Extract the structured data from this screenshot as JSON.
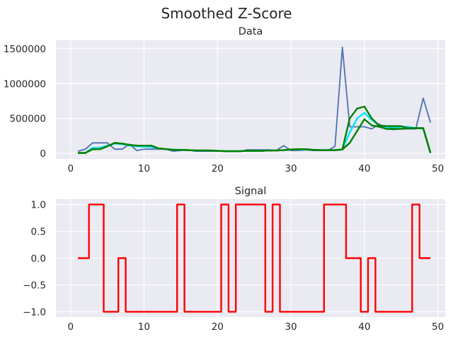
{
  "figure": {
    "title": "Smoothed Z-Score"
  },
  "chart_data": [
    {
      "type": "line",
      "title": "Data",
      "xlabel": "",
      "ylabel": "",
      "xlim": [
        -2,
        51
      ],
      "ylim": [
        -80000,
        1620000
      ],
      "xticks": [
        0,
        10,
        20,
        30,
        40,
        50
      ],
      "yticks": [
        0,
        500000,
        1000000,
        1500000
      ],
      "grid": true,
      "x": [
        1,
        2,
        3,
        4,
        5,
        6,
        7,
        8,
        9,
        10,
        11,
        12,
        13,
        14,
        15,
        16,
        17,
        18,
        19,
        20,
        21,
        22,
        23,
        24,
        25,
        26,
        27,
        28,
        29,
        30,
        31,
        32,
        33,
        34,
        35,
        36,
        37,
        38,
        39,
        40,
        41,
        42,
        43,
        44,
        45,
        46,
        47,
        48,
        49
      ],
      "series": [
        {
          "color": "#4c72b0",
          "values": [
            30000,
            60000,
            150000,
            150000,
            150000,
            60000,
            60000,
            130000,
            40000,
            60000,
            60000,
            60000,
            60000,
            30000,
            40000,
            50000,
            30000,
            30000,
            30000,
            30000,
            30000,
            30000,
            25000,
            50000,
            50000,
            50000,
            50000,
            40000,
            110000,
            40000,
            40000,
            50000,
            40000,
            40000,
            40000,
            100000,
            1520000,
            380000,
            380000,
            380000,
            350000,
            420000,
            350000,
            340000,
            350000,
            350000,
            350000,
            790000,
            440000
          ]
        },
        {
          "color": "#00e5ff",
          "values": [
            5000,
            5000,
            80000,
            80000,
            110000,
            140000,
            130000,
            110000,
            100000,
            95000,
            90000,
            70000,
            60000,
            55000,
            50000,
            45000,
            40000,
            40000,
            40000,
            35000,
            30000,
            30000,
            30000,
            35000,
            35000,
            35000,
            40000,
            40000,
            45000,
            55000,
            55000,
            55000,
            50000,
            45000,
            45000,
            45000,
            55000,
            300000,
            500000,
            580000,
            480000,
            400000,
            380000,
            370000,
            380000,
            380000,
            360000,
            360000,
            5000
          ]
        },
        {
          "color": "#008000",
          "values": [
            5000,
            5000,
            60000,
            60000,
            100000,
            150000,
            140000,
            120000,
            110000,
            110000,
            110000,
            70000,
            60000,
            50000,
            50000,
            45000,
            40000,
            40000,
            40000,
            35000,
            30000,
            30000,
            30000,
            35000,
            35000,
            35000,
            40000,
            40000,
            45000,
            55000,
            60000,
            60000,
            50000,
            45000,
            45000,
            45000,
            55000,
            500000,
            640000,
            670000,
            500000,
            400000,
            390000,
            390000,
            390000,
            360000,
            360000,
            360000,
            5000
          ]
        },
        {
          "color": "#008000",
          "values": [
            5000,
            5000,
            60000,
            60000,
            100000,
            150000,
            140000,
            120000,
            110000,
            110000,
            110000,
            70000,
            60000,
            50000,
            50000,
            45000,
            40000,
            40000,
            40000,
            35000,
            30000,
            30000,
            30000,
            35000,
            35000,
            35000,
            40000,
            40000,
            45000,
            55000,
            60000,
            60000,
            50000,
            45000,
            45000,
            45000,
            55000,
            150000,
            320000,
            490000,
            400000,
            380000,
            350000,
            350000,
            350000,
            360000,
            360000,
            360000,
            5000
          ]
        }
      ]
    },
    {
      "type": "line",
      "title": "Signal",
      "xlabel": "",
      "ylabel": "",
      "xlim": [
        -2,
        51
      ],
      "ylim": [
        -1.1,
        1.1
      ],
      "xticks": [
        0,
        10,
        20,
        30,
        40,
        50
      ],
      "yticks": [
        1.0,
        0.5,
        0.0,
        -0.5,
        -1.0
      ],
      "ytick_labels": [
        "1.0",
        "0.5",
        "0.0",
        "−0.5",
        "−1.0"
      ],
      "grid": true,
      "step": true,
      "x": [
        1,
        2,
        3,
        4,
        5,
        6,
        7,
        8,
        9,
        10,
        11,
        12,
        13,
        14,
        15,
        16,
        17,
        18,
        19,
        20,
        21,
        22,
        23,
        24,
        25,
        26,
        27,
        28,
        29,
        30,
        31,
        32,
        33,
        34,
        35,
        36,
        37,
        38,
        39,
        40,
        41,
        42,
        43,
        44,
        45,
        46,
        47,
        48,
        49
      ],
      "series": [
        {
          "color": "#ff0000",
          "values": [
            0,
            0,
            1,
            1,
            -1,
            -1,
            0,
            -1,
            -1,
            -1,
            -1,
            -1,
            -1,
            -1,
            1,
            -1,
            -1,
            -1,
            -1,
            -1,
            1,
            -1,
            1,
            1,
            1,
            1,
            -1,
            1,
            -1,
            -1,
            -1,
            -1,
            -1,
            -1,
            1,
            1,
            1,
            0,
            0,
            -1,
            0,
            -1,
            -1,
            -1,
            -1,
            -1,
            1,
            0,
            0
          ]
        }
      ]
    }
  ]
}
